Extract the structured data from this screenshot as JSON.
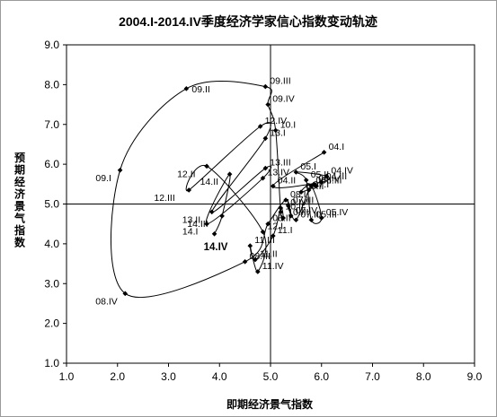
{
  "chart_data": {
    "type": "scatter",
    "title": "2004.I-2014.IV季度经济学家信心指数变动轨迹",
    "xlabel": "即期经济景气指数",
    "ylabel": "预期经济景气指数",
    "xlim": [
      1.0,
      9.0
    ],
    "ylim": [
      1.0,
      9.0
    ],
    "x_ticks": [
      "1.0",
      "2.0",
      "3.0",
      "4.0",
      "5.0",
      "6.0",
      "7.0",
      "8.0",
      "9.0"
    ],
    "y_ticks": [
      "1.0",
      "2.0",
      "3.0",
      "4.0",
      "5.0",
      "6.0",
      "7.0",
      "8.0",
      "9.0"
    ],
    "reference_lines": {
      "x": 5.0,
      "y": 5.0
    },
    "grid": false,
    "line_color": "#000000",
    "marker": "diamond",
    "series": [
      {
        "points": [
          {
            "label": "04.I",
            "x": 6.05,
            "y": 6.3
          },
          {
            "label": "04.II",
            "x": 5.05,
            "y": 5.45
          },
          {
            "label": "04.III",
            "x": 6.0,
            "y": 5.55
          },
          {
            "label": "04.IV",
            "x": 6.1,
            "y": 5.7
          },
          {
            "label": "05.I",
            "x": 5.5,
            "y": 5.8
          },
          {
            "label": "05.II",
            "x": 5.7,
            "y": 5.6
          },
          {
            "label": "05.III",
            "x": 5.8,
            "y": 4.6
          },
          {
            "label": "05.IV",
            "x": 6.0,
            "y": 4.65
          },
          {
            "label": "06.I",
            "x": 5.8,
            "y": 5.45
          },
          {
            "label": "06.II",
            "x": 5.6,
            "y": 5.3
          },
          {
            "label": "06.III",
            "x": 5.9,
            "y": 5.45
          },
          {
            "label": "06.IV",
            "x": 5.85,
            "y": 5.5
          },
          {
            "label": "07.I",
            "x": 5.75,
            "y": 5.35
          },
          {
            "label": "07.II",
            "x": 5.5,
            "y": 4.6
          },
          {
            "label": "07.III",
            "x": 5.35,
            "y": 4.95
          },
          {
            "label": "07.IV",
            "x": 5.4,
            "y": 4.7
          },
          {
            "label": "08.I",
            "x": 5.3,
            "y": 5.1
          },
          {
            "label": "08.II",
            "x": 4.95,
            "y": 4.5
          },
          {
            "label": "08.III",
            "x": 4.5,
            "y": 3.55
          },
          {
            "label": "08.IV",
            "x": 2.15,
            "y": 2.75
          },
          {
            "label": "09.I",
            "x": 2.05,
            "y": 5.85
          },
          {
            "label": "09.II",
            "x": 3.35,
            "y": 7.9
          },
          {
            "label": "09.III",
            "x": 4.9,
            "y": 7.95
          },
          {
            "label": "09.IV",
            "x": 4.95,
            "y": 7.5
          },
          {
            "label": "10.I",
            "x": 5.1,
            "y": 6.85
          },
          {
            "label": "10.II",
            "x": 5.2,
            "y": 4.8
          },
          {
            "label": "10.III",
            "x": 5.25,
            "y": 4.65
          },
          {
            "label": "10.IV",
            "x": 5.2,
            "y": 4.9
          },
          {
            "label": "11.I",
            "x": 5.05,
            "y": 4.2
          },
          {
            "label": "11.II",
            "x": 4.7,
            "y": 3.6
          },
          {
            "label": "11.III",
            "x": 4.6,
            "y": 3.95
          },
          {
            "label": "11.IV",
            "x": 4.75,
            "y": 3.3
          },
          {
            "label": "12.I",
            "x": 4.85,
            "y": 4.3
          },
          {
            "label": "12.II",
            "x": 3.75,
            "y": 5.95
          },
          {
            "label": "12.III",
            "x": 3.4,
            "y": 5.35
          },
          {
            "label": "12.IV",
            "x": 4.8,
            "y": 6.95
          },
          {
            "label": "13.I",
            "x": 4.9,
            "y": 6.65
          },
          {
            "label": "13.II",
            "x": 3.85,
            "y": 4.8
          },
          {
            "label": "13.III",
            "x": 4.9,
            "y": 5.9
          },
          {
            "label": "13.IV",
            "x": 4.85,
            "y": 5.65
          },
          {
            "label": "14.I",
            "x": 3.75,
            "y": 4.5
          },
          {
            "label": "14.II",
            "x": 4.2,
            "y": 5.75
          },
          {
            "label": "14.III",
            "x": 4.05,
            "y": 4.7
          },
          {
            "label": "14.IV",
            "x": 3.9,
            "y": 4.25
          }
        ]
      }
    ]
  }
}
